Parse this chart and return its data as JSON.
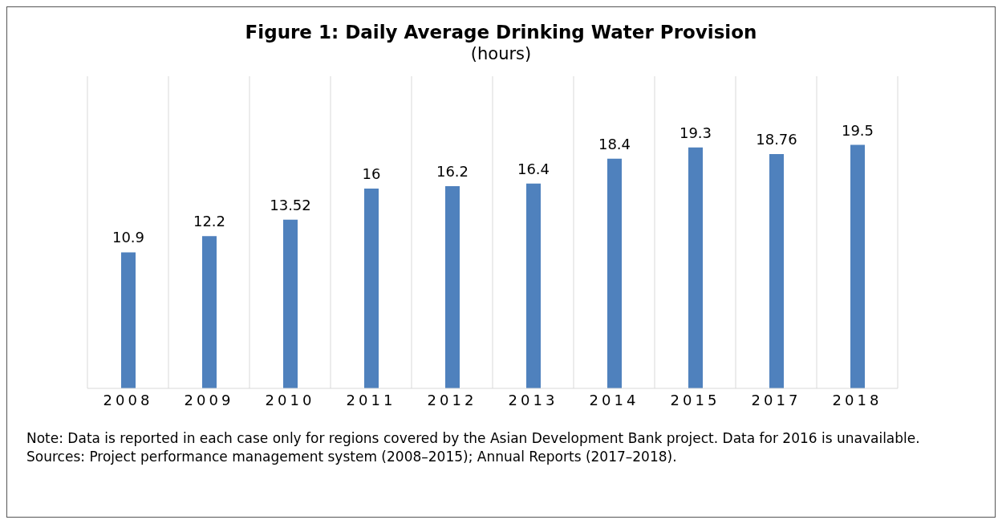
{
  "chart_data": {
    "type": "bar",
    "title": "Figure 1: Daily Average Drinking Water Provision",
    "subtitle": "(hours)",
    "categories": [
      "2008",
      "2009",
      "2010",
      "2011",
      "2012",
      "2013",
      "2014",
      "2015",
      "2017",
      "2018"
    ],
    "values": [
      10.9,
      12.2,
      13.52,
      16,
      16.2,
      16.4,
      18.4,
      19.3,
      18.76,
      19.5
    ],
    "color": "#4f81bd",
    "ylim": [
      0,
      25
    ],
    "grid": "x",
    "data_labels": true,
    "annotations": [
      "Note: Data is reported in each case only for regions covered by the Asian Development Bank project. Data for 2016 is unavailable.",
      "Sources: Project performance management system (2008–2015); Annual Reports (2017–2018)."
    ]
  }
}
